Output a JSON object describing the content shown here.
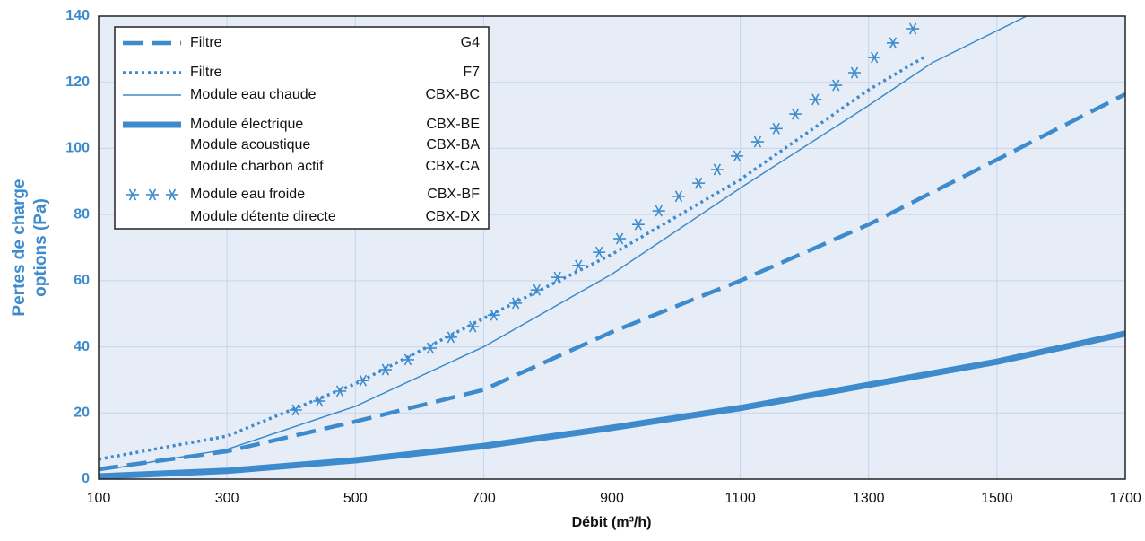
{
  "chart_data": {
    "type": "line",
    "xlabel": "Débit (m³/h)",
    "ylabel": [
      "Pertes de charge",
      "options (Pa)"
    ],
    "xlim": [
      100,
      1700
    ],
    "xticks": [
      100,
      300,
      500,
      700,
      900,
      1100,
      1300,
      1500,
      1700
    ],
    "ylim": [
      0,
      140
    ],
    "yticks": [
      0,
      20,
      40,
      60,
      80,
      100,
      120,
      140
    ],
    "grid": true,
    "legend": "upper left",
    "series": [
      {
        "name": "Filtre",
        "code": "G4",
        "color": "#3d8bcd",
        "style": "dashed",
        "width": 4.5,
        "x": [
          100,
          300,
          500,
          700,
          900,
          1100,
          1300,
          1500,
          1700
        ],
        "values": [
          3,
          8.4,
          17.4,
          27,
          44.5,
          60,
          77,
          96.6,
          116.4
        ]
      },
      {
        "name": "Filtre",
        "code": "F7",
        "color": "#3d8bcd",
        "style": "dotted",
        "width": 3.5,
        "x": [
          100,
          300,
          500,
          700,
          900,
          1100,
          1300,
          1390
        ],
        "values": [
          6,
          13,
          28.8,
          48.6,
          68,
          90.6,
          117.7,
          128
        ]
      },
      {
        "name": "Module eau chaude",
        "code": "CBX-BC",
        "color": "#3d8bcd",
        "style": "solid",
        "width": 1.5,
        "x": [
          100,
          300,
          500,
          700,
          900,
          1100,
          1300,
          1400,
          1546
        ],
        "values": [
          2.5,
          9,
          22,
          40,
          62,
          88,
          113,
          126,
          140
        ]
      },
      {
        "name": "Module électrique",
        "code": "CBX-BE",
        "color": "#3d8bcd",
        "style": "solid",
        "width": 7,
        "x": [
          100,
          300,
          500,
          700,
          900,
          1100,
          1300,
          1500,
          1700
        ],
        "values": [
          0.8,
          2.5,
          5.7,
          10,
          15.5,
          21.5,
          28.5,
          35.5,
          44
        ],
        "also": [
          {
            "name": "Module acoustique",
            "code": "CBX-BA"
          },
          {
            "name": "Module charbon actif",
            "code": "CBX-CA"
          }
        ]
      },
      {
        "name": "Module eau froide",
        "code": "CBX-BF",
        "color": "#3d8bcd",
        "style": "none",
        "marker": "snowflake",
        "x": [
          407,
          444,
          476,
          512,
          547,
          582,
          617,
          649,
          683,
          716,
          750,
          783,
          815,
          848,
          880,
          912,
          941,
          973,
          1004,
          1035,
          1064,
          1095,
          1127,
          1156,
          1186,
          1217,
          1249,
          1278,
          1309,
          1338,
          1369
        ],
        "values": [
          20.9,
          23.6,
          26.6,
          29.8,
          33.1,
          36.1,
          39.6,
          42.9,
          46.1,
          49.6,
          53.2,
          57.2,
          61,
          64.6,
          68.6,
          72.7,
          77,
          81.1,
          85.5,
          89.5,
          93.6,
          97.7,
          102,
          106,
          110.4,
          114.8,
          119.1,
          122.9,
          127.5,
          131.9,
          136.2
        ],
        "also": [
          {
            "name": "Module détente directe",
            "code": "CBX-DX"
          }
        ]
      }
    ]
  }
}
